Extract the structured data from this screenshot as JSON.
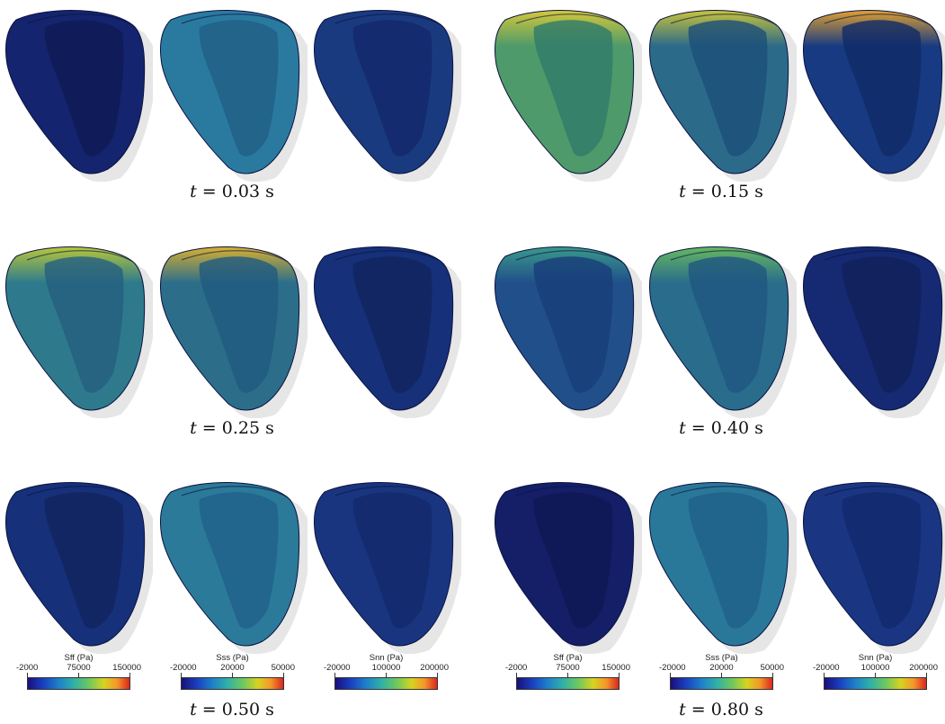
{
  "time_labels": {
    "r1_left": "0.03",
    "r1_right": "0.15",
    "r2_left": "0.25",
    "r2_right": "0.40",
    "r3_left": "0.50",
    "r3_right": "0.80",
    "var": "t",
    "unit": "s"
  },
  "colorbars": [
    {
      "title": "Sff (Pa)",
      "min": "-2000",
      "mid": "75000",
      "max": "150000"
    },
    {
      "title": "Sss (Pa)",
      "min": "-20000",
      "mid": "20000",
      "max": "50000"
    },
    {
      "title": "Snn (Pa)",
      "min": "-20000",
      "mid": "100000",
      "max": "200000"
    },
    {
      "title": "Sff (Pa)",
      "min": "-2000",
      "mid": "75000",
      "max": "150000"
    },
    {
      "title": "Sss (Pa)",
      "min": "-20000",
      "mid": "20000",
      "max": "50000"
    },
    {
      "title": "Snn (Pa)",
      "min": "-20000",
      "mid": "100000",
      "max": "200000"
    }
  ],
  "colormap": [
    "#1a0f7a",
    "#1a3fbf",
    "#1e7fc8",
    "#2fb0a8",
    "#6cc860",
    "#d7d320",
    "#f5952a",
    "#d9281e"
  ]
}
